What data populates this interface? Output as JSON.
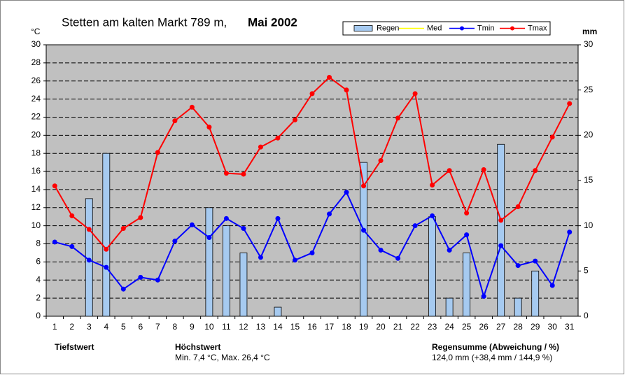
{
  "chart_data": {
    "type": "bar_line",
    "title": "Stetten am kalten Markt 789 m,",
    "title_bold": "Mai 2002",
    "y_unit": "°C",
    "y2_unit": "mm",
    "categories": [
      "1",
      "2",
      "3",
      "4",
      "5",
      "6",
      "7",
      "8",
      "9",
      "10",
      "11",
      "12",
      "13",
      "14",
      "15",
      "16",
      "17",
      "18",
      "19",
      "20",
      "21",
      "22",
      "23",
      "24",
      "25",
      "26",
      "27",
      "28",
      "29",
      "30",
      "31"
    ],
    "series": [
      {
        "name": "Regen",
        "color": "#a6caf0",
        "kind": "bar",
        "axis": "y2",
        "values": [
          0,
          0,
          13,
          18,
          0,
          0,
          0,
          0,
          0,
          12,
          10,
          7,
          0,
          1,
          0,
          0,
          0,
          0,
          17,
          0,
          0,
          0,
          11,
          2,
          7,
          0,
          19,
          2,
          5,
          0,
          0
        ]
      },
      {
        "name": "Med",
        "color": "#ffff00",
        "kind": "line",
        "values": [
          null,
          null,
          null,
          null,
          null,
          null,
          null,
          null,
          null,
          null,
          null,
          null,
          null,
          null,
          null,
          null,
          null,
          null,
          null,
          null,
          null,
          null,
          null,
          null,
          null,
          null,
          null,
          null,
          null,
          null,
          null
        ]
      },
      {
        "name": "Tmin",
        "color": "#0000ff",
        "kind": "line",
        "values": [
          8.2,
          7.7,
          6.2,
          5.4,
          3.0,
          4.3,
          4.0,
          8.3,
          10.1,
          8.7,
          10.8,
          9.7,
          6.5,
          10.8,
          6.2,
          7.0,
          11.3,
          13.7,
          9.5,
          7.3,
          6.4,
          10.0,
          11.1,
          7.3,
          9.0,
          2.2,
          7.8,
          5.6,
          6.1,
          3.4,
          9.3
        ]
      },
      {
        "name": "Tmax",
        "color": "#ff0000",
        "kind": "line",
        "values": [
          14.4,
          11.1,
          9.6,
          7.4,
          9.7,
          10.9,
          18.1,
          21.6,
          23.1,
          20.9,
          15.8,
          15.7,
          18.7,
          19.7,
          21.7,
          24.6,
          26.4,
          25.0,
          14.4,
          17.2,
          21.9,
          24.6,
          14.5,
          16.1,
          11.4,
          16.2,
          10.6,
          12.1,
          16.1,
          19.8,
          23.5
        ]
      }
    ],
    "ylim": [
      0,
      30
    ],
    "yticks": [
      0,
      2,
      4,
      6,
      8,
      10,
      12,
      14,
      16,
      18,
      20,
      22,
      24,
      26,
      28,
      30
    ],
    "y2lim": [
      0,
      30
    ],
    "y2ticks": [
      0,
      5,
      10,
      15,
      20,
      25,
      30
    ],
    "grid": true,
    "footer": {
      "min_label": "Tiefstwert",
      "max_label": "Höchstwert",
      "max_text": "Min. 7,4 °C, Max. 26,4 °C",
      "rain_label": "Regensumme (Abweichung / %)",
      "rain_text": "124,0 mm (+38,4 mm / 144,9 %)"
    }
  }
}
